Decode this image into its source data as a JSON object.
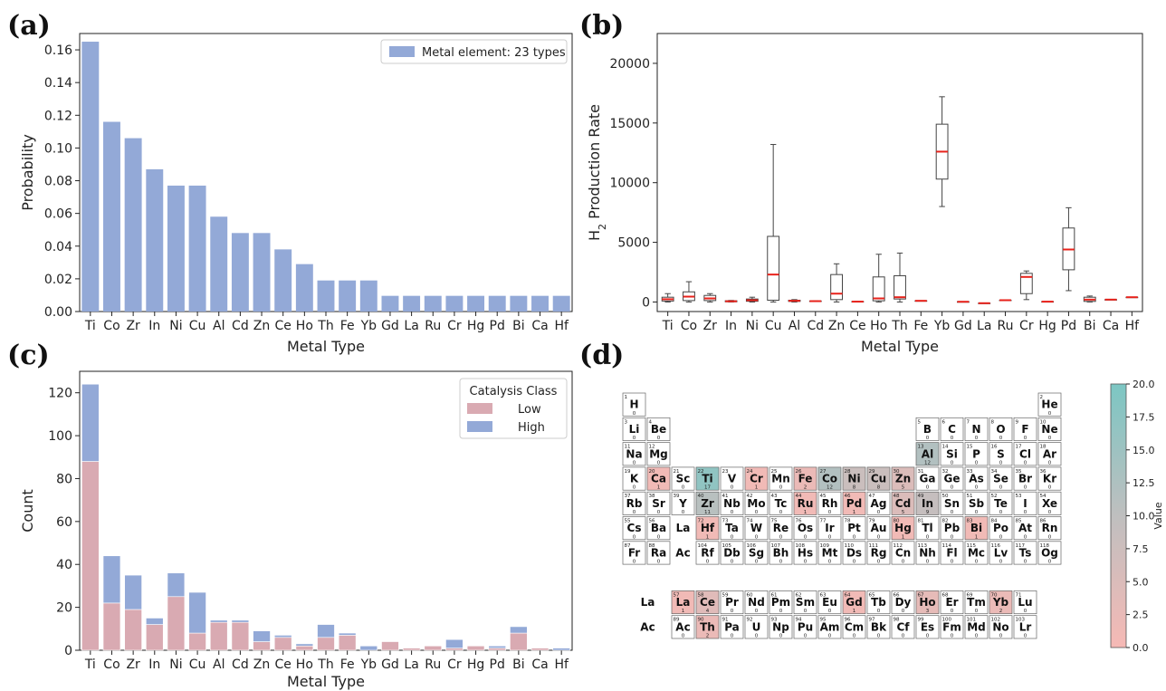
{
  "panel_labels": {
    "a": "(a)",
    "b": "(b)",
    "c": "(c)",
    "d": "(d)"
  },
  "chart_data": [
    {
      "id": "a",
      "type": "bar",
      "xlabel": "Metal Type",
      "ylabel": "Probability",
      "ylim": [
        0,
        0.17
      ],
      "yticks": [
        0.0,
        0.02,
        0.04,
        0.06,
        0.08,
        0.1,
        0.12,
        0.14,
        0.16
      ],
      "ytick_labels": [
        "0.00",
        "0.02",
        "0.04",
        "0.06",
        "0.08",
        "0.10",
        "0.12",
        "0.14",
        "0.16"
      ],
      "categories": [
        "Ti",
        "Co",
        "Zr",
        "In",
        "Ni",
        "Cu",
        "Al",
        "Cd",
        "Zn",
        "Ce",
        "Ho",
        "Th",
        "Fe",
        "Yb",
        "Gd",
        "La",
        "Ru",
        "Cr",
        "Hg",
        "Pd",
        "Bi",
        "Ca",
        "Hf"
      ],
      "values": [
        0.165,
        0.116,
        0.106,
        0.087,
        0.077,
        0.077,
        0.058,
        0.048,
        0.048,
        0.038,
        0.029,
        0.019,
        0.019,
        0.019,
        0.0096,
        0.0096,
        0.0096,
        0.0096,
        0.0096,
        0.0096,
        0.0096,
        0.0096,
        0.0096
      ],
      "legend": "Metal element: 23 types",
      "legend_position": "top-right",
      "color": "#93a9d7"
    },
    {
      "id": "b",
      "type": "box",
      "xlabel": "Metal Type",
      "ylabel_main": "H",
      "ylabel_sub": "2",
      "ylabel_rest": " Production Rate",
      "ylim": [
        -800,
        22500
      ],
      "yticks": [
        0,
        5000,
        10000,
        15000,
        20000
      ],
      "ytick_labels": [
        "0",
        "5000",
        "10000",
        "15000",
        "20000"
      ],
      "categories": [
        "Ti",
        "Co",
        "Zr",
        "In",
        "Ni",
        "Cu",
        "Al",
        "Cd",
        "Zn",
        "Ce",
        "Ho",
        "Th",
        "Fe",
        "Yb",
        "Gd",
        "La",
        "Ru",
        "Cr",
        "Hg",
        "Pd",
        "Bi",
        "Ca",
        "Hf"
      ],
      "boxes": [
        {
          "min": 0,
          "q1": 80,
          "median": 230,
          "q3": 400,
          "max": 700
        },
        {
          "min": 0,
          "q1": 120,
          "median": 450,
          "q3": 850,
          "max": 1700
        },
        {
          "min": 0,
          "q1": 120,
          "median": 300,
          "q3": 550,
          "max": 700
        },
        {
          "min": 0,
          "q1": 20,
          "median": 60,
          "q3": 100,
          "max": 130
        },
        {
          "min": 0,
          "q1": 60,
          "median": 150,
          "q3": 250,
          "max": 400
        },
        {
          "min": 0,
          "q1": 150,
          "median": 2300,
          "q3": 5500,
          "max": 13200
        },
        {
          "min": 0,
          "q1": 50,
          "median": 100,
          "q3": 150,
          "max": 200
        },
        {
          "min": 50,
          "q1": 60,
          "median": 70,
          "q3": 80,
          "max": 100
        },
        {
          "min": 0,
          "q1": 200,
          "median": 700,
          "q3": 2300,
          "max": 3200
        },
        {
          "min": 20,
          "q1": 25,
          "median": 30,
          "q3": 40,
          "max": 50
        },
        {
          "min": 0,
          "q1": 100,
          "median": 300,
          "q3": 2100,
          "max": 4000
        },
        {
          "min": 0,
          "q1": 250,
          "median": 400,
          "q3": 2200,
          "max": 4100
        },
        {
          "min": 100,
          "q1": 100,
          "median": 100,
          "q3": 100,
          "max": 100
        },
        {
          "min": 8000,
          "q1": 10300,
          "median": 12600,
          "q3": 14900,
          "max": 17200
        },
        {
          "min": 20,
          "q1": 20,
          "median": 20,
          "q3": 20,
          "max": 20
        },
        {
          "min": -100,
          "q1": -100,
          "median": -100,
          "q3": -100,
          "max": -100
        },
        {
          "min": 150,
          "q1": 150,
          "median": 150,
          "q3": 150,
          "max": 150
        },
        {
          "min": 200,
          "q1": 700,
          "median": 2100,
          "q3": 2400,
          "max": 2600
        },
        {
          "min": 30,
          "q1": 30,
          "median": 30,
          "q3": 30,
          "max": 30
        },
        {
          "min": 950,
          "q1": 2700,
          "median": 4400,
          "q3": 6200,
          "max": 7900
        },
        {
          "min": 0,
          "q1": 50,
          "median": 200,
          "q3": 400,
          "max": 500
        },
        {
          "min": 200,
          "q1": 200,
          "median": 200,
          "q3": 200,
          "max": 200
        },
        {
          "min": 400,
          "q1": 400,
          "median": 400,
          "q3": 400,
          "max": 400
        }
      ],
      "median_color": "#e8221b"
    },
    {
      "id": "c",
      "type": "bar",
      "stacked": true,
      "xlabel": "Metal Type",
      "ylabel": "Count",
      "ylim": [
        0,
        130
      ],
      "yticks": [
        0,
        20,
        40,
        60,
        80,
        100,
        120
      ],
      "ytick_labels": [
        "0",
        "20",
        "40",
        "60",
        "80",
        "100",
        "120"
      ],
      "categories": [
        "Ti",
        "Co",
        "Zr",
        "In",
        "Ni",
        "Cu",
        "Al",
        "Cd",
        "Zn",
        "Ce",
        "Ho",
        "Th",
        "Fe",
        "Yb",
        "Gd",
        "La",
        "Ru",
        "Cr",
        "Hg",
        "Pd",
        "Bi",
        "Ca",
        "Hf"
      ],
      "series": [
        {
          "name": "Low",
          "color": "#d9aab2",
          "values": [
            88,
            22,
            19,
            12,
            25,
            8,
            13,
            13,
            4,
            6,
            2,
            6,
            7,
            0,
            4,
            1,
            2,
            1,
            2,
            1,
            8,
            1,
            0
          ]
        },
        {
          "name": "High",
          "color": "#93a9d7",
          "values": [
            36,
            22,
            16,
            3,
            11,
            19,
            1,
            1,
            5,
            1,
            1,
            6,
            1,
            2,
            0,
            0,
            0,
            4,
            0,
            1,
            3,
            0,
            1
          ]
        }
      ],
      "legend_title": "Catalysis Class",
      "legend_position": "top-right"
    },
    {
      "id": "d",
      "type": "heatmap",
      "subtype": "periodic-table",
      "colorbar_label": "Value",
      "colorbar_ticks": [
        "0.0",
        "2.5",
        "5.0",
        "7.5",
        "10.0",
        "12.5",
        "15.0",
        "17.5",
        "20.0"
      ],
      "vmin": 0,
      "vmax": 20,
      "colors": {
        "low": "#f6b9b5",
        "mid": "#bfbfbf",
        "high": "#7cc6c3"
      },
      "row_labels": [
        "La",
        "Ac"
      ],
      "elements": [
        [
          "H",
          1,
          0,
          1,
          1
        ],
        [
          "He",
          2,
          0,
          1,
          18
        ],
        [
          "Li",
          3,
          0,
          2,
          1
        ],
        [
          "Be",
          4,
          0,
          2,
          2
        ],
        [
          "B",
          5,
          0,
          2,
          13
        ],
        [
          "C",
          6,
          0,
          2,
          14
        ],
        [
          "N",
          7,
          0,
          2,
          15
        ],
        [
          "O",
          8,
          0,
          2,
          16
        ],
        [
          "F",
          9,
          0,
          2,
          17
        ],
        [
          "Ne",
          10,
          0,
          2,
          18
        ],
        [
          "Na",
          11,
          0,
          3,
          1
        ],
        [
          "Mg",
          12,
          0,
          3,
          2
        ],
        [
          "Al",
          13,
          12,
          3,
          13
        ],
        [
          "Si",
          14,
          0,
          3,
          14
        ],
        [
          "P",
          15,
          0,
          3,
          15
        ],
        [
          "S",
          16,
          0,
          3,
          16
        ],
        [
          "Cl",
          17,
          0,
          3,
          17
        ],
        [
          "Ar",
          18,
          0,
          3,
          18
        ],
        [
          "K",
          19,
          0,
          4,
          1
        ],
        [
          "Ca",
          20,
          1,
          4,
          2
        ],
        [
          "Sc",
          21,
          0,
          4,
          3
        ],
        [
          "Ti",
          22,
          17,
          4,
          4
        ],
        [
          "V",
          23,
          0,
          4,
          5
        ],
        [
          "Cr",
          24,
          1,
          4,
          6
        ],
        [
          "Mn",
          25,
          0,
          4,
          7
        ],
        [
          "Fe",
          26,
          2,
          4,
          8
        ],
        [
          "Co",
          27,
          12,
          4,
          9
        ],
        [
          "Ni",
          28,
          8,
          4,
          10
        ],
        [
          "Cu",
          29,
          8,
          4,
          11
        ],
        [
          "Zn",
          30,
          5,
          4,
          12
        ],
        [
          "Ga",
          31,
          0,
          4,
          13
        ],
        [
          "Ge",
          32,
          0,
          4,
          14
        ],
        [
          "As",
          33,
          0,
          4,
          15
        ],
        [
          "Se",
          34,
          0,
          4,
          16
        ],
        [
          "Br",
          35,
          0,
          4,
          17
        ],
        [
          "Kr",
          36,
          0,
          4,
          18
        ],
        [
          "Rb",
          37,
          0,
          5,
          1
        ],
        [
          "Sr",
          38,
          0,
          5,
          2
        ],
        [
          "Y",
          39,
          0,
          5,
          3
        ],
        [
          "Zr",
          40,
          11,
          5,
          4
        ],
        [
          "Nb",
          41,
          0,
          5,
          5
        ],
        [
          "Mo",
          42,
          0,
          5,
          6
        ],
        [
          "Tc",
          43,
          0,
          5,
          7
        ],
        [
          "Ru",
          44,
          1,
          5,
          8
        ],
        [
          "Rh",
          45,
          0,
          5,
          9
        ],
        [
          "Pd",
          46,
          1,
          5,
          10
        ],
        [
          "Ag",
          47,
          0,
          5,
          11
        ],
        [
          "Cd",
          48,
          5,
          5,
          12
        ],
        [
          "In",
          49,
          9,
          5,
          13
        ],
        [
          "Sn",
          50,
          0,
          5,
          14
        ],
        [
          "Sb",
          51,
          0,
          5,
          15
        ],
        [
          "Te",
          52,
          0,
          5,
          16
        ],
        [
          "I",
          53,
          0,
          5,
          17
        ],
        [
          "Xe",
          54,
          0,
          5,
          18
        ],
        [
          "Cs",
          55,
          0,
          6,
          1
        ],
        [
          "Ba",
          56,
          0,
          6,
          2
        ],
        [
          "La",
          null,
          null,
          6,
          3
        ],
        [
          "Hf",
          72,
          1,
          6,
          4
        ],
        [
          "Ta",
          73,
          0,
          6,
          5
        ],
        [
          "W",
          74,
          0,
          6,
          6
        ],
        [
          "Re",
          75,
          0,
          6,
          7
        ],
        [
          "Os",
          76,
          0,
          6,
          8
        ],
        [
          "Ir",
          77,
          0,
          6,
          9
        ],
        [
          "Pt",
          78,
          0,
          6,
          10
        ],
        [
          "Au",
          79,
          0,
          6,
          11
        ],
        [
          "Hg",
          80,
          1,
          6,
          12
        ],
        [
          "Tl",
          81,
          0,
          6,
          13
        ],
        [
          "Pb",
          82,
          0,
          6,
          14
        ],
        [
          "Bi",
          83,
          1,
          6,
          15
        ],
        [
          "Po",
          84,
          0,
          6,
          16
        ],
        [
          "At",
          85,
          0,
          6,
          17
        ],
        [
          "Rn",
          86,
          0,
          6,
          18
        ],
        [
          "Fr",
          87,
          0,
          7,
          1
        ],
        [
          "Ra",
          88,
          0,
          7,
          2
        ],
        [
          "Ac",
          null,
          null,
          7,
          3
        ],
        [
          "Rf",
          104,
          0,
          7,
          4
        ],
        [
          "Db",
          105,
          0,
          7,
          5
        ],
        [
          "Sg",
          106,
          0,
          7,
          6
        ],
        [
          "Bh",
          107,
          0,
          7,
          7
        ],
        [
          "Hs",
          108,
          0,
          7,
          8
        ],
        [
          "Mt",
          109,
          0,
          7,
          9
        ],
        [
          "Ds",
          110,
          0,
          7,
          10
        ],
        [
          "Rg",
          111,
          0,
          7,
          11
        ],
        [
          "Cn",
          112,
          0,
          7,
          12
        ],
        [
          "Nh",
          113,
          0,
          7,
          13
        ],
        [
          "Fl",
          114,
          0,
          7,
          14
        ],
        [
          "Mc",
          115,
          0,
          7,
          15
        ],
        [
          "Lv",
          116,
          0,
          7,
          16
        ],
        [
          "Ts",
          117,
          0,
          7,
          17
        ],
        [
          "Og",
          118,
          0,
          7,
          18
        ],
        [
          "La",
          57,
          1,
          9,
          3
        ],
        [
          "Ce",
          58,
          4,
          9,
          4
        ],
        [
          "Pr",
          59,
          0,
          9,
          5
        ],
        [
          "Nd",
          60,
          0,
          9,
          6
        ],
        [
          "Pm",
          61,
          0,
          9,
          7
        ],
        [
          "Sm",
          62,
          0,
          9,
          8
        ],
        [
          "Eu",
          63,
          0,
          9,
          9
        ],
        [
          "Gd",
          64,
          1,
          9,
          10
        ],
        [
          "Tb",
          65,
          0,
          9,
          11
        ],
        [
          "Dy",
          66,
          0,
          9,
          12
        ],
        [
          "Ho",
          67,
          3,
          9,
          13
        ],
        [
          "Er",
          68,
          0,
          9,
          14
        ],
        [
          "Tm",
          69,
          0,
          9,
          15
        ],
        [
          "Yb",
          70,
          2,
          9,
          16
        ],
        [
          "Lu",
          71,
          0,
          9,
          17
        ],
        [
          "Ac",
          89,
          0,
          10,
          3
        ],
        [
          "Th",
          90,
          2,
          10,
          4
        ],
        [
          "Pa",
          91,
          0,
          10,
          5
        ],
        [
          "U",
          92,
          0,
          10,
          6
        ],
        [
          "Np",
          93,
          0,
          10,
          7
        ],
        [
          "Pu",
          94,
          0,
          10,
          8
        ],
        [
          "Am",
          95,
          0,
          10,
          9
        ],
        [
          "Cm",
          96,
          0,
          10,
          10
        ],
        [
          "Bk",
          97,
          0,
          10,
          11
        ],
        [
          "Cf",
          98,
          0,
          10,
          12
        ],
        [
          "Es",
          99,
          0,
          10,
          13
        ],
        [
          "Fm",
          100,
          0,
          10,
          14
        ],
        [
          "Md",
          101,
          0,
          10,
          15
        ],
        [
          "No",
          102,
          0,
          10,
          16
        ],
        [
          "Lr",
          103,
          0,
          10,
          17
        ]
      ]
    }
  ]
}
